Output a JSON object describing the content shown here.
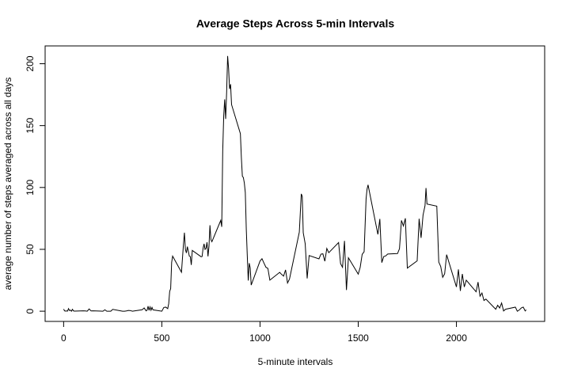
{
  "chart_data": {
    "type": "line",
    "title": "Average Steps Across 5-min Intervals",
    "x_label": "5-minute intervals",
    "y_label": "average number of steps averaged across all days",
    "color": "#000000",
    "x": [
      0,
      5,
      10,
      15,
      20,
      25,
      30,
      35,
      40,
      45,
      50,
      55,
      100,
      110,
      120,
      130,
      140,
      150,
      200,
      210,
      220,
      230,
      240,
      250,
      300,
      310,
      320,
      330,
      340,
      350,
      400,
      410,
      420,
      425,
      430,
      435,
      440,
      445,
      450,
      455,
      500,
      510,
      520,
      530,
      535,
      540,
      545,
      550,
      555,
      600,
      610,
      615,
      620,
      625,
      630,
      640,
      645,
      650,
      655,
      700,
      705,
      710,
      715,
      720,
      725,
      730,
      735,
      740,
      745,
      750,
      755,
      800,
      805,
      810,
      815,
      820,
      825,
      830,
      835,
      840,
      845,
      850,
      855,
      900,
      905,
      910,
      915,
      920,
      925,
      930,
      935,
      940,
      945,
      950,
      955,
      1000,
      1010,
      1020,
      1030,
      1040,
      1050,
      1100,
      1110,
      1120,
      1130,
      1140,
      1150,
      1200,
      1210,
      1215,
      1220,
      1230,
      1240,
      1250,
      1300,
      1310,
      1320,
      1330,
      1340,
      1350,
      1400,
      1410,
      1420,
      1430,
      1440,
      1450,
      1500,
      1510,
      1520,
      1530,
      1540,
      1545,
      1550,
      1600,
      1610,
      1620,
      1630,
      1640,
      1650,
      1700,
      1710,
      1720,
      1730,
      1740,
      1750,
      1800,
      1810,
      1820,
      1830,
      1840,
      1845,
      1850,
      1900,
      1910,
      1920,
      1930,
      1940,
      1950,
      2000,
      2010,
      2020,
      2030,
      2040,
      2050,
      2100,
      2110,
      2120,
      2130,
      2140,
      2150,
      2200,
      2210,
      2220,
      2230,
      2240,
      2250,
      2300,
      2310,
      2320,
      2330,
      2340,
      2350,
      2355
    ],
    "values": [
      1.7,
      0.3,
      0.1,
      0.2,
      0.1,
      2.1,
      0.5,
      0.9,
      0,
      1.5,
      0.3,
      0.1,
      0.3,
      0.2,
      0,
      1.8,
      0.2,
      0.3,
      0,
      1.1,
      0,
      0,
      0,
      1.5,
      0,
      0,
      0.2,
      0.6,
      0.5,
      0,
      1.2,
      2.6,
      0.3,
      0.8,
      4.1,
      0.7,
      3.5,
      0.8,
      3.1,
      1.1,
      0,
      3,
      3.3,
      2.1,
      6.1,
      16,
      18.3,
      39.5,
      44.5,
      31.5,
      53.8,
      63.5,
      50,
      47.1,
      52.2,
      44.5,
      44.2,
      37.4,
      49.1,
      44,
      44.2,
      50.8,
      54.5,
      49.9,
      50.9,
      55.7,
      44.3,
      52.3,
      69.5,
      57.8,
      56.2,
      73.4,
      68.2,
      129.4,
      157.5,
      171.2,
      155.4,
      177.3,
      206.2,
      195.9,
      179.6,
      183.4,
      167,
      143.5,
      124,
      109.1,
      108.1,
      103.7,
      95.9,
      66.2,
      45.2,
      24.8,
      38.8,
      35,
      21.1,
      40.6,
      42.4,
      38.9,
      35.5,
      34.6,
      25.1,
      31.4,
      29.7,
      28.4,
      33.4,
      22.8,
      26,
      63.9,
      94.8,
      92.8,
      63.4,
      54.5,
      26.5,
      45,
      42.3,
      46.1,
      46.4,
      40.4,
      50.7,
      47.3,
      55.5,
      38.5,
      35.5,
      56.8,
      17.1,
      43.2,
      30,
      35.5,
      45.9,
      48.1,
      90.9,
      98.7,
      102.1,
      62.1,
      74.6,
      39.3,
      44.2,
      44.7,
      46.2,
      46.6,
      50.5,
      73.4,
      68.9,
      75.1,
      34.8,
      40.7,
      74.7,
      59.3,
      77.7,
      85.3,
      99.5,
      86.6,
      84.9,
      39.7,
      36.1,
      27.4,
      30.2,
      45.7,
      19.6,
      33.8,
      16.4,
      30.1,
      19.6,
      25.1,
      15.7,
      23.5,
      12.1,
      14.7,
      8.7,
      9.8,
      1.6,
      4.8,
      2.6,
      6.6,
      0.2,
      1.6,
      3.3,
      0,
      1,
      2.6,
      3.3,
      0.2,
      1.1
    ],
    "xlim": [
      -94.2,
      2449.2
    ],
    "ylim": [
      -8.25,
      214.4
    ],
    "xticks": [
      0,
      500,
      1000,
      1500,
      2000
    ],
    "yticks": [
      0,
      50,
      100,
      150,
      200
    ]
  }
}
